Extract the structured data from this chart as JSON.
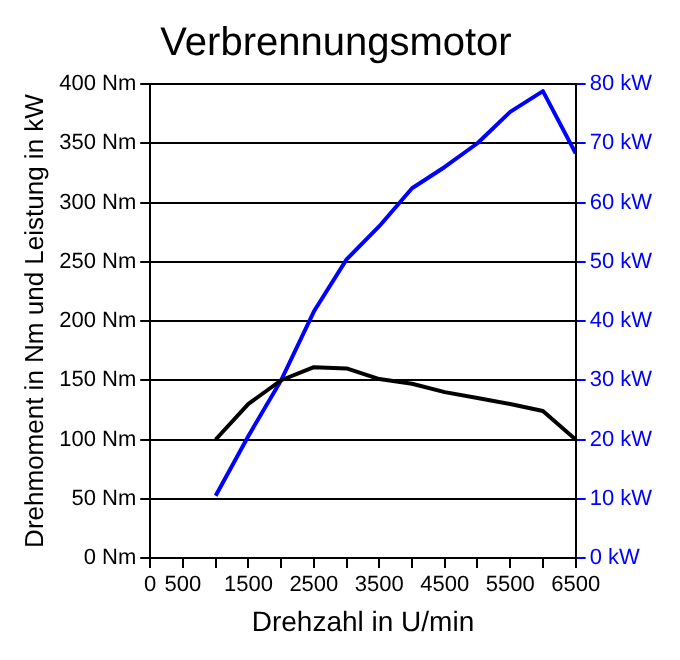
{
  "chart_data": {
    "type": "line",
    "title": "Verbrennungsmotor",
    "xlabel": "Drehzahl in U/min",
    "ylabel": "Drehmoment in Nm und Leistung in kW",
    "x": [
      1000,
      1500,
      2000,
      2500,
      3000,
      3500,
      4000,
      4500,
      5000,
      5500,
      6000,
      6500
    ],
    "series": [
      {
        "color": "#000000",
        "values": [
          100,
          130,
          150,
          161,
          160,
          151,
          147,
          140,
          135,
          130,
          124,
          100
        ]
      },
      {
        "color": "#0000ff",
        "axis": "y2",
        "values": [
          10.5,
          20.6,
          30,
          41.6,
          50.4,
          56,
          62.4,
          66,
          70,
          75.3,
          78.8,
          68.3
        ]
      }
    ],
    "xlim": [
      0,
      6500
    ],
    "xticks": [
      0,
      500,
      {
        "value": 1000,
        "label": null
      },
      1500,
      {
        "value": 2000,
        "label": null
      },
      2500,
      {
        "value": 3000,
        "label": null
      },
      3500,
      {
        "value": 4000,
        "label": null
      },
      4500,
      {
        "value": 5000,
        "label": null
      },
      5500,
      {
        "value": 6000,
        "label": null
      },
      6500
    ],
    "ylim": [
      0,
      400
    ],
    "yticks": [
      {
        "value": 0,
        "label": "0 Nm"
      },
      {
        "value": 50,
        "label": "50 Nm"
      },
      {
        "value": 100,
        "label": "100 Nm"
      },
      {
        "value": 150,
        "label": "150 Nm"
      },
      {
        "value": 200,
        "label": "200 Nm"
      },
      {
        "value": 250,
        "label": "250 Nm"
      },
      {
        "value": 300,
        "label": "300 Nm"
      },
      {
        "value": 350,
        "label": "350 Nm"
      },
      {
        "value": 400,
        "label": "400 Nm"
      }
    ],
    "y2lim": [
      0,
      80
    ],
    "y2ticks": [
      {
        "value": 0,
        "label": "0 kW"
      },
      {
        "value": 10,
        "label": "10 kW"
      },
      {
        "value": 20,
        "label": "20 kW"
      },
      {
        "value": 30,
        "label": "30 kW"
      },
      {
        "value": 40,
        "label": "40 kW"
      },
      {
        "value": 50,
        "label": "50 kW"
      },
      {
        "value": 60,
        "label": "60 kW"
      },
      {
        "value": 70,
        "label": "70 kW"
      },
      {
        "value": 80,
        "label": "80 kW"
      }
    ],
    "grid": "y",
    "legend": false,
    "marker": "none",
    "line_style": "solid"
  }
}
